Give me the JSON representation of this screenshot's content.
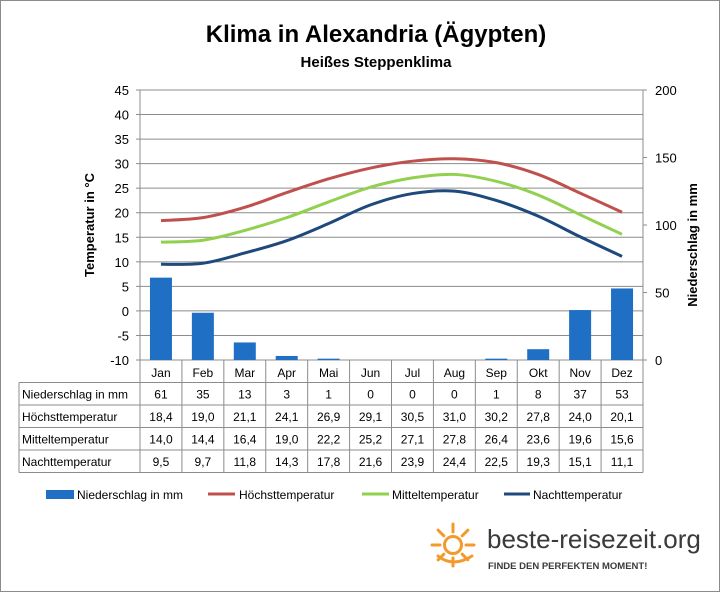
{
  "chart_data": {
    "type": "bar",
    "title": "Klima in Alexandria (Ägypten)",
    "subtitle": "Heißes Steppenklima",
    "categories": [
      "Jan",
      "Feb",
      "Mar",
      "Apr",
      "Mai",
      "Jun",
      "Jul",
      "Aug",
      "Sep",
      "Okt",
      "Nov",
      "Dez"
    ],
    "y_left": {
      "label": "Temperatur in °C",
      "range": [
        -10,
        45
      ],
      "ticks": [
        45,
        40,
        35,
        30,
        25,
        20,
        15,
        10,
        5,
        0,
        -5,
        -10
      ]
    },
    "y_right": {
      "label": "Niederschlag in mm",
      "range": [
        0,
        200
      ],
      "ticks": [
        200,
        150,
        100,
        50,
        0
      ]
    },
    "grid": true,
    "legend_position": "bottom",
    "series": [
      {
        "name": "Niederschlag in mm",
        "type": "bar",
        "axis": "right",
        "color": "#1f6fc5",
        "values": [
          61,
          35,
          13,
          3,
          1,
          0,
          0,
          0,
          1,
          8,
          37,
          53
        ],
        "labels": [
          "61",
          "35",
          "13",
          "3",
          "1",
          "0",
          "0",
          "0",
          "1",
          "8",
          "37",
          "53"
        ]
      },
      {
        "name": "Höchsttemperatur",
        "type": "line",
        "axis": "left",
        "color": "#c0504d",
        "values": [
          18.4,
          19.0,
          21.1,
          24.1,
          26.9,
          29.1,
          30.5,
          31.0,
          30.2,
          27.8,
          24.0,
          20.1
        ],
        "labels": [
          "18,4",
          "19,0",
          "21,1",
          "24,1",
          "26,9",
          "29,1",
          "30,5",
          "31,0",
          "30,2",
          "27,8",
          "24,0",
          "20,1"
        ]
      },
      {
        "name": "Mitteltemperatur",
        "type": "line",
        "axis": "left",
        "color": "#92d050",
        "values": [
          14.0,
          14.4,
          16.4,
          19.0,
          22.2,
          25.2,
          27.1,
          27.8,
          26.4,
          23.6,
          19.6,
          15.6
        ],
        "labels": [
          "14,0",
          "14,4",
          "16,4",
          "19,0",
          "22,2",
          "25,2",
          "27,1",
          "27,8",
          "26,4",
          "23,6",
          "19,6",
          "15,6"
        ]
      },
      {
        "name": "Nachttemperatur",
        "type": "line",
        "axis": "left",
        "color": "#1f497d",
        "values": [
          9.5,
          9.7,
          11.8,
          14.3,
          17.8,
          21.6,
          23.9,
          24.4,
          22.5,
          19.3,
          15.1,
          11.1
        ],
        "labels": [
          "9,5",
          "9,7",
          "11,8",
          "14,3",
          "17,8",
          "21,6",
          "23,9",
          "24,4",
          "22,5",
          "19,3",
          "15,1",
          "11,1"
        ]
      }
    ]
  },
  "logo": {
    "brand": "beste-reisezeit.org",
    "tagline": "FINDE DEN PERFEKTEN MOMENT!",
    "sun_color": "#f39a2c"
  }
}
